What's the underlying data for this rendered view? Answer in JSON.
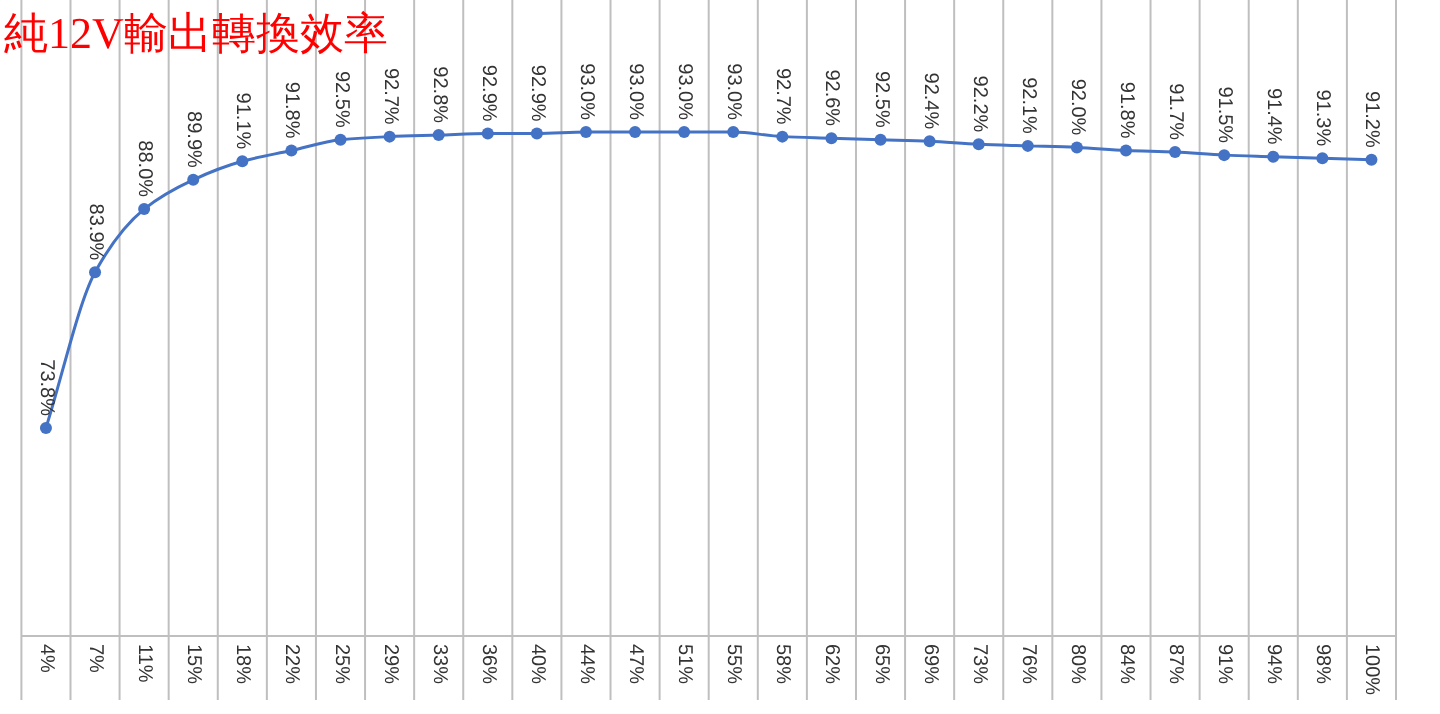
{
  "chart_data": {
    "type": "line",
    "title": "純12V輸出轉換效率",
    "categories": [
      "4%",
      "7%",
      "11%",
      "15%",
      "18%",
      "22%",
      "25%",
      "29%",
      "33%",
      "36%",
      "40%",
      "44%",
      "47%",
      "51%",
      "55%",
      "58%",
      "62%",
      "65%",
      "69%",
      "73%",
      "76%",
      "80%",
      "84%",
      "87%",
      "91%",
      "94%",
      "98%",
      "100%"
    ],
    "series": [
      {
        "color": "#4472c4",
        "values": [
          73.8,
          83.9,
          88.0,
          89.9,
          91.1,
          91.8,
          92.5,
          92.7,
          92.8,
          92.9,
          92.9,
          93.0,
          93.0,
          93.0,
          93.0,
          92.7,
          92.6,
          92.5,
          92.4,
          92.2,
          92.1,
          92.0,
          91.8,
          91.7,
          91.5,
          91.4,
          91.3,
          91.2
        ],
        "value_labels": [
          "73.8%",
          "83.9%",
          "88.0%",
          "89.9%",
          "91.1%",
          "91.8%",
          "92.5%",
          "92.7%",
          "92.8%",
          "92.9%",
          "92.9%",
          "93.0%",
          "93.0%",
          "93.0%",
          "93.0%",
          "92.7%",
          "92.6%",
          "92.5%",
          "92.4%",
          "92.2%",
          "92.1%",
          "92.0%",
          "91.8%",
          "91.7%",
          "91.5%",
          "91.4%",
          "91.3%",
          "91.2%"
        ]
      }
    ],
    "grid": "x",
    "marker": "circle",
    "line_style": "solid"
  }
}
